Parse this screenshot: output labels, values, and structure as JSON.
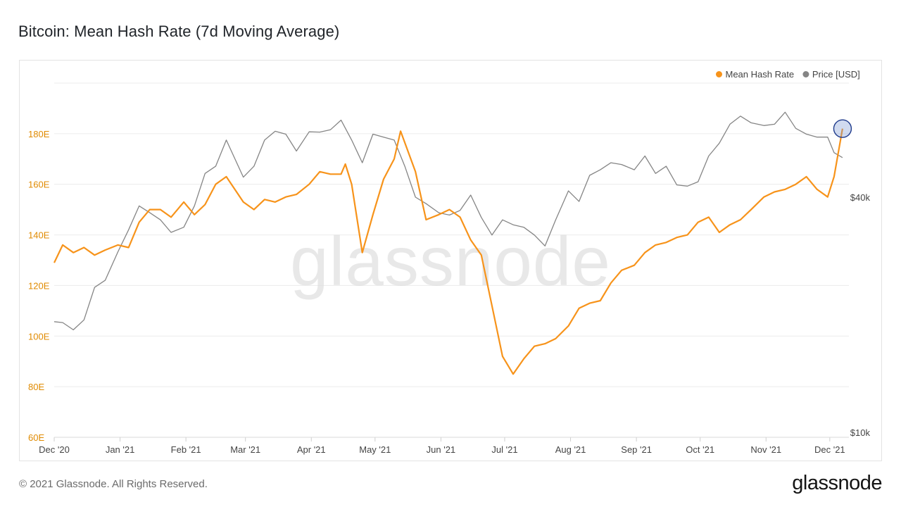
{
  "chart_data": {
    "type": "line",
    "title": "Bitcoin: Mean Hash Rate (7d Moving Average)",
    "x_axis": {
      "ticks": [
        "Dec '20",
        "Jan '21",
        "Feb '21",
        "Mar '21",
        "Apr '21",
        "May '21",
        "Jun '21",
        "Jul '21",
        "Aug '21",
        "Sep '21",
        "Oct '21",
        "Nov '21",
        "Dec '21"
      ],
      "range": [
        "2020-12-01",
        "2021-12-10"
      ]
    },
    "y_axis_left": {
      "ticks": [
        "60E",
        "80E",
        "100E",
        "120E",
        "140E",
        "160E",
        "180E"
      ],
      "range": [
        60,
        200
      ],
      "unit": "E"
    },
    "y_axis_right": {
      "ticks": [
        "$10k",
        "$40k"
      ],
      "scale": "log"
    },
    "grid": true,
    "legend": {
      "placement": "top-right",
      "entries": [
        {
          "label": "Mean Hash Rate",
          "color": "#f7931a"
        },
        {
          "label": "Price [USD]",
          "color": "#858585"
        }
      ]
    },
    "series": [
      {
        "name": "Mean Hash Rate",
        "axis": "left",
        "color": "#f7931a",
        "x": [
          "2020-12-01",
          "2020-12-05",
          "2020-12-10",
          "2020-12-15",
          "2020-12-20",
          "2020-12-25",
          "2020-12-31",
          "2021-01-05",
          "2021-01-10",
          "2021-01-15",
          "2021-01-20",
          "2021-01-25",
          "2021-01-31",
          "2021-02-05",
          "2021-02-10",
          "2021-02-15",
          "2021-02-20",
          "2021-02-28",
          "2021-03-05",
          "2021-03-10",
          "2021-03-15",
          "2021-03-20",
          "2021-03-25",
          "2021-03-31",
          "2021-04-05",
          "2021-04-10",
          "2021-04-15",
          "2021-04-17",
          "2021-04-20",
          "2021-04-25",
          "2021-04-30",
          "2021-05-05",
          "2021-05-10",
          "2021-05-13",
          "2021-05-20",
          "2021-05-25",
          "2021-05-31",
          "2021-06-05",
          "2021-06-10",
          "2021-06-15",
          "2021-06-20",
          "2021-06-25",
          "2021-06-30",
          "2021-07-05",
          "2021-07-10",
          "2021-07-15",
          "2021-07-20",
          "2021-07-25",
          "2021-07-31",
          "2021-08-05",
          "2021-08-10",
          "2021-08-15",
          "2021-08-20",
          "2021-08-25",
          "2021-08-31",
          "2021-09-05",
          "2021-09-10",
          "2021-09-15",
          "2021-09-20",
          "2021-09-25",
          "2021-09-30",
          "2021-10-05",
          "2021-10-10",
          "2021-10-15",
          "2021-10-20",
          "2021-10-25",
          "2021-10-31",
          "2021-11-05",
          "2021-11-10",
          "2021-11-15",
          "2021-11-20",
          "2021-11-25",
          "2021-11-30",
          "2021-12-03",
          "2021-12-07"
        ],
        "values": [
          129,
          136,
          133,
          135,
          132,
          134,
          136,
          135,
          145,
          150,
          150,
          147,
          153,
          148,
          152,
          160,
          163,
          153,
          150,
          154,
          153,
          155,
          156,
          160,
          165,
          164,
          164,
          168,
          160,
          133,
          148,
          162,
          170,
          181,
          165,
          146,
          148,
          150,
          147,
          138,
          132,
          112,
          92,
          85,
          91,
          96,
          97,
          99,
          104,
          111,
          113,
          114,
          121,
          126,
          128,
          133,
          136,
          137,
          139,
          140,
          145,
          147,
          141,
          144,
          146,
          150,
          155,
          157,
          158,
          160,
          163,
          158,
          155,
          163,
          182
        ]
      },
      {
        "name": "Price [USD]",
        "axis": "right",
        "color": "#858585",
        "x": [
          "2020-12-01",
          "2020-12-05",
          "2020-12-10",
          "2020-12-15",
          "2020-12-20",
          "2020-12-25",
          "2020-12-31",
          "2021-01-05",
          "2021-01-10",
          "2021-01-15",
          "2021-01-20",
          "2021-01-25",
          "2021-01-31",
          "2021-02-05",
          "2021-02-10",
          "2021-02-15",
          "2021-02-20",
          "2021-02-28",
          "2021-03-05",
          "2021-03-10",
          "2021-03-15",
          "2021-03-20",
          "2021-03-25",
          "2021-03-31",
          "2021-04-05",
          "2021-04-10",
          "2021-04-15",
          "2021-04-20",
          "2021-04-25",
          "2021-04-30",
          "2021-05-05",
          "2021-05-10",
          "2021-05-15",
          "2021-05-20",
          "2021-05-25",
          "2021-05-31",
          "2021-06-05",
          "2021-06-10",
          "2021-06-15",
          "2021-06-20",
          "2021-06-25",
          "2021-06-30",
          "2021-07-05",
          "2021-07-10",
          "2021-07-15",
          "2021-07-20",
          "2021-07-25",
          "2021-07-31",
          "2021-08-05",
          "2021-08-10",
          "2021-08-15",
          "2021-08-20",
          "2021-08-25",
          "2021-08-31",
          "2021-09-05",
          "2021-09-10",
          "2021-09-15",
          "2021-09-20",
          "2021-09-25",
          "2021-09-30",
          "2021-10-05",
          "2021-10-10",
          "2021-10-15",
          "2021-10-20",
          "2021-10-25",
          "2021-10-31",
          "2021-11-05",
          "2021-11-10",
          "2021-11-15",
          "2021-11-20",
          "2021-11-25",
          "2021-11-30",
          "2021-12-03",
          "2021-12-07"
        ],
        "values": [
          19200,
          19100,
          18300,
          19400,
          23500,
          24500,
          29000,
          33000,
          38000,
          36500,
          35000,
          32500,
          33500,
          38000,
          46000,
          48000,
          56000,
          45000,
          48000,
          56000,
          59000,
          58000,
          52500,
          58800,
          58700,
          59500,
          63000,
          56000,
          49000,
          58000,
          57000,
          56000,
          48000,
          40000,
          38500,
          36500,
          36000,
          37000,
          40500,
          35500,
          32000,
          35000,
          34000,
          33500,
          32000,
          30000,
          35000,
          41500,
          39000,
          45500,
          47000,
          49000,
          48500,
          47000,
          51000,
          46000,
          48000,
          43000,
          42700,
          43800,
          51000,
          55000,
          61500,
          64500,
          62000,
          61000,
          61500,
          66000,
          60000,
          58000,
          57000,
          57000,
          52000,
          50500
        ]
      }
    ]
  },
  "watermark": "glassnode",
  "footer": {
    "copyright": "© 2021 Glassnode. All Rights Reserved.",
    "logo": "glassnode"
  }
}
